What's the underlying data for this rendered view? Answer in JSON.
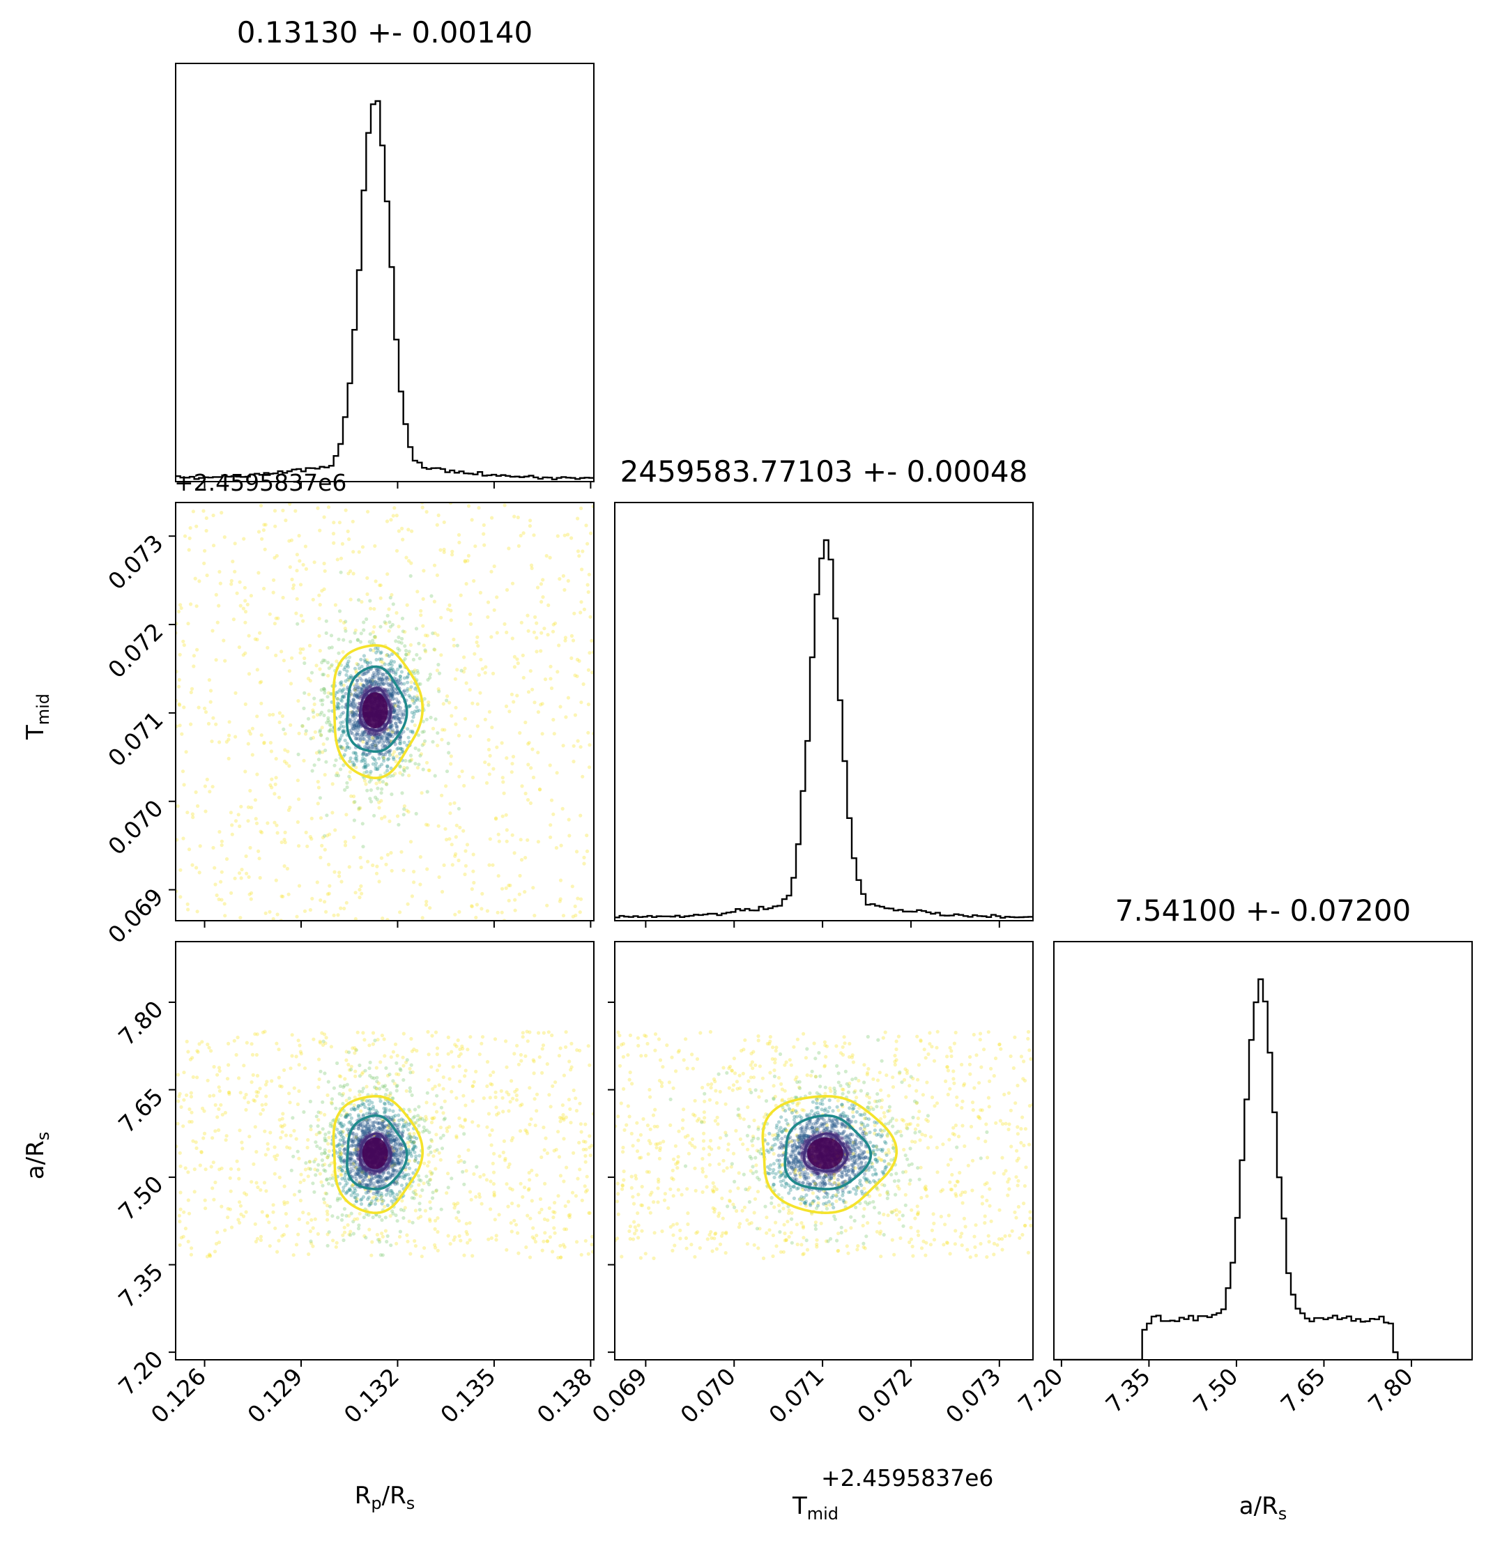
{
  "chart_data": {
    "type": "corner",
    "parameters": [
      "Rp/Rs",
      "Tmid",
      "a/Rs"
    ],
    "offset_label": "+2.4595837e6",
    "colors": {
      "level1": "#46327e",
      "level2": "#1f8a8c",
      "level3": "#f5e32b",
      "hist": "#000000"
    },
    "panel_titles": [
      "0.13130 +- 0.00140",
      "2459583.77103 +- 0.00048",
      "7.54100 +- 0.07200"
    ],
    "axis_labels": {
      "rp": {
        "base": "R",
        "sub": "p",
        "sep": "/R",
        "sub2": "s"
      },
      "tmid": {
        "base": "T",
        "sub": "mid"
      },
      "ars": {
        "base": "a/R",
        "sub": "s"
      }
    },
    "ranges": {
      "rp": [
        0.1251,
        0.1381
      ],
      "tmid": [
        0.06865,
        0.07338
      ],
      "ars": [
        7.187,
        7.904
      ]
    },
    "ticks": {
      "rp": {
        "values": [
          0.126,
          0.129,
          0.132,
          0.135,
          0.138
        ],
        "labels": [
          "0.126",
          "0.129",
          "0.132",
          "0.135",
          "0.138"
        ]
      },
      "tmid": {
        "values": [
          0.069,
          0.07,
          0.071,
          0.072,
          0.073
        ],
        "labels": [
          "0.069",
          "0.070",
          "0.071",
          "0.072",
          "0.073"
        ]
      },
      "ars": {
        "values": [
          7.2,
          7.35,
          7.5,
          7.65,
          7.8
        ],
        "labels": [
          "7.20",
          "7.35",
          "7.50",
          "7.65",
          "7.80"
        ]
      }
    },
    "histograms": {
      "rp": {
        "center": 0.1313,
        "core_sigma": 0.00045,
        "tail_sigma": 0.0022,
        "tail_weight": 0.22,
        "peak_bin": 0.1312
      },
      "tmid": {
        "center": 0.07103,
        "core_sigma": 0.00016,
        "tail_sigma": 0.0008,
        "tail_weight": 0.22
      },
      "ars": {
        "center": 7.541,
        "core_sigma": 0.025,
        "tail_sigma": 0.13,
        "tail_weight": 0.45,
        "support": [
          7.34,
          7.77
        ]
      }
    },
    "contours": {
      "rp_tmid": {
        "center": [
          0.1313,
          0.07103
        ],
        "levels": [
          [
            0.00047,
            0.00024
          ],
          [
            0.00092,
            0.00048
          ],
          [
            0.00137,
            0.00075
          ]
        ]
      },
      "rp_ars": {
        "center": [
          0.1313,
          7.541
        ],
        "levels": [
          [
            0.00047,
            0.032
          ],
          [
            0.00092,
            0.063
          ],
          [
            0.00137,
            0.1
          ]
        ]
      },
      "tmid_ars": {
        "center": [
          0.07103,
          7.541
        ],
        "levels": [
          [
            0.00024,
            0.032
          ],
          [
            0.00048,
            0.063
          ],
          [
            0.00075,
            0.1
          ]
        ]
      }
    },
    "grid": false,
    "legend": "none"
  }
}
